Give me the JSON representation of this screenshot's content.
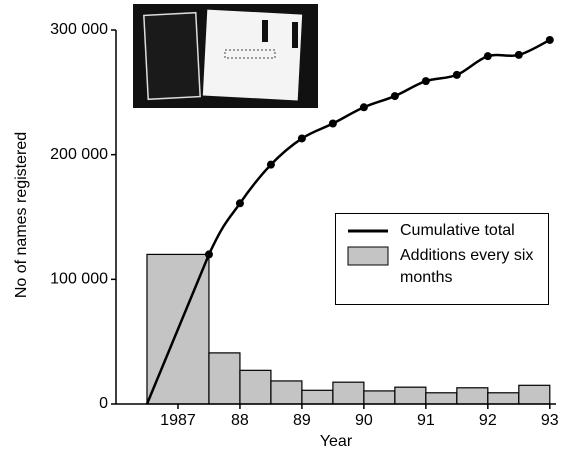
{
  "chart_data": {
    "type": "histogram",
    "xlabel": "Year",
    "ylabel": "No of names registered",
    "xlim": [
      1986,
      1993.1
    ],
    "ylim": [
      0,
      300000
    ],
    "xticks": [
      1987,
      {
        "value": 1988,
        "label": "88"
      },
      {
        "value": 1989,
        "label": "89"
      },
      {
        "value": 1990,
        "label": "90"
      },
      {
        "value": 1991,
        "label": "91"
      },
      {
        "value": 1992,
        "label": "92"
      },
      {
        "value": 1993,
        "label": "93"
      }
    ],
    "yticks": [
      0,
      {
        "value": 100000,
        "label": "100 000"
      },
      {
        "value": 200000,
        "label": "200 000"
      },
      {
        "value": 300000,
        "label": "300 000"
      }
    ],
    "bins": [
      1986.5,
      1987.5,
      1988,
      1988.5,
      1989,
      1989.5,
      1990,
      1990.5,
      1991,
      1991.5,
      1992,
      1992.5,
      1993
    ],
    "series": [
      {
        "name": "Additions every six months",
        "color": "#c4c4c4",
        "values": [
          120000,
          41000,
          27000,
          18500,
          11000,
          17500,
          10500,
          13500,
          9000,
          13000,
          9000,
          15000
        ]
      },
      {
        "name": "Cumulative total",
        "color": "#000000",
        "x": [
          1986.5,
          1987.5,
          1988,
          1988.5,
          1989,
          1989.5,
          1990,
          1990.5,
          1991,
          1991.5,
          1992,
          1992.5,
          1993
        ],
        "values": [
          0,
          120000,
          161000,
          192000,
          213000,
          225000,
          238000,
          247000,
          259000,
          264000,
          279000,
          280000,
          292000
        ],
        "points": {
          "x": [
            1987.5,
            1988,
            1988.5,
            1989,
            1989.5,
            1990,
            1990.5,
            1991,
            1991.5,
            1992,
            1992.5,
            1993
          ],
          "values": [
            120000,
            161000,
            192000,
            213000,
            225000,
            238000,
            247000,
            259000,
            264000,
            279000,
            280000,
            292000
          ]
        }
      }
    ],
    "legend": "right"
  }
}
